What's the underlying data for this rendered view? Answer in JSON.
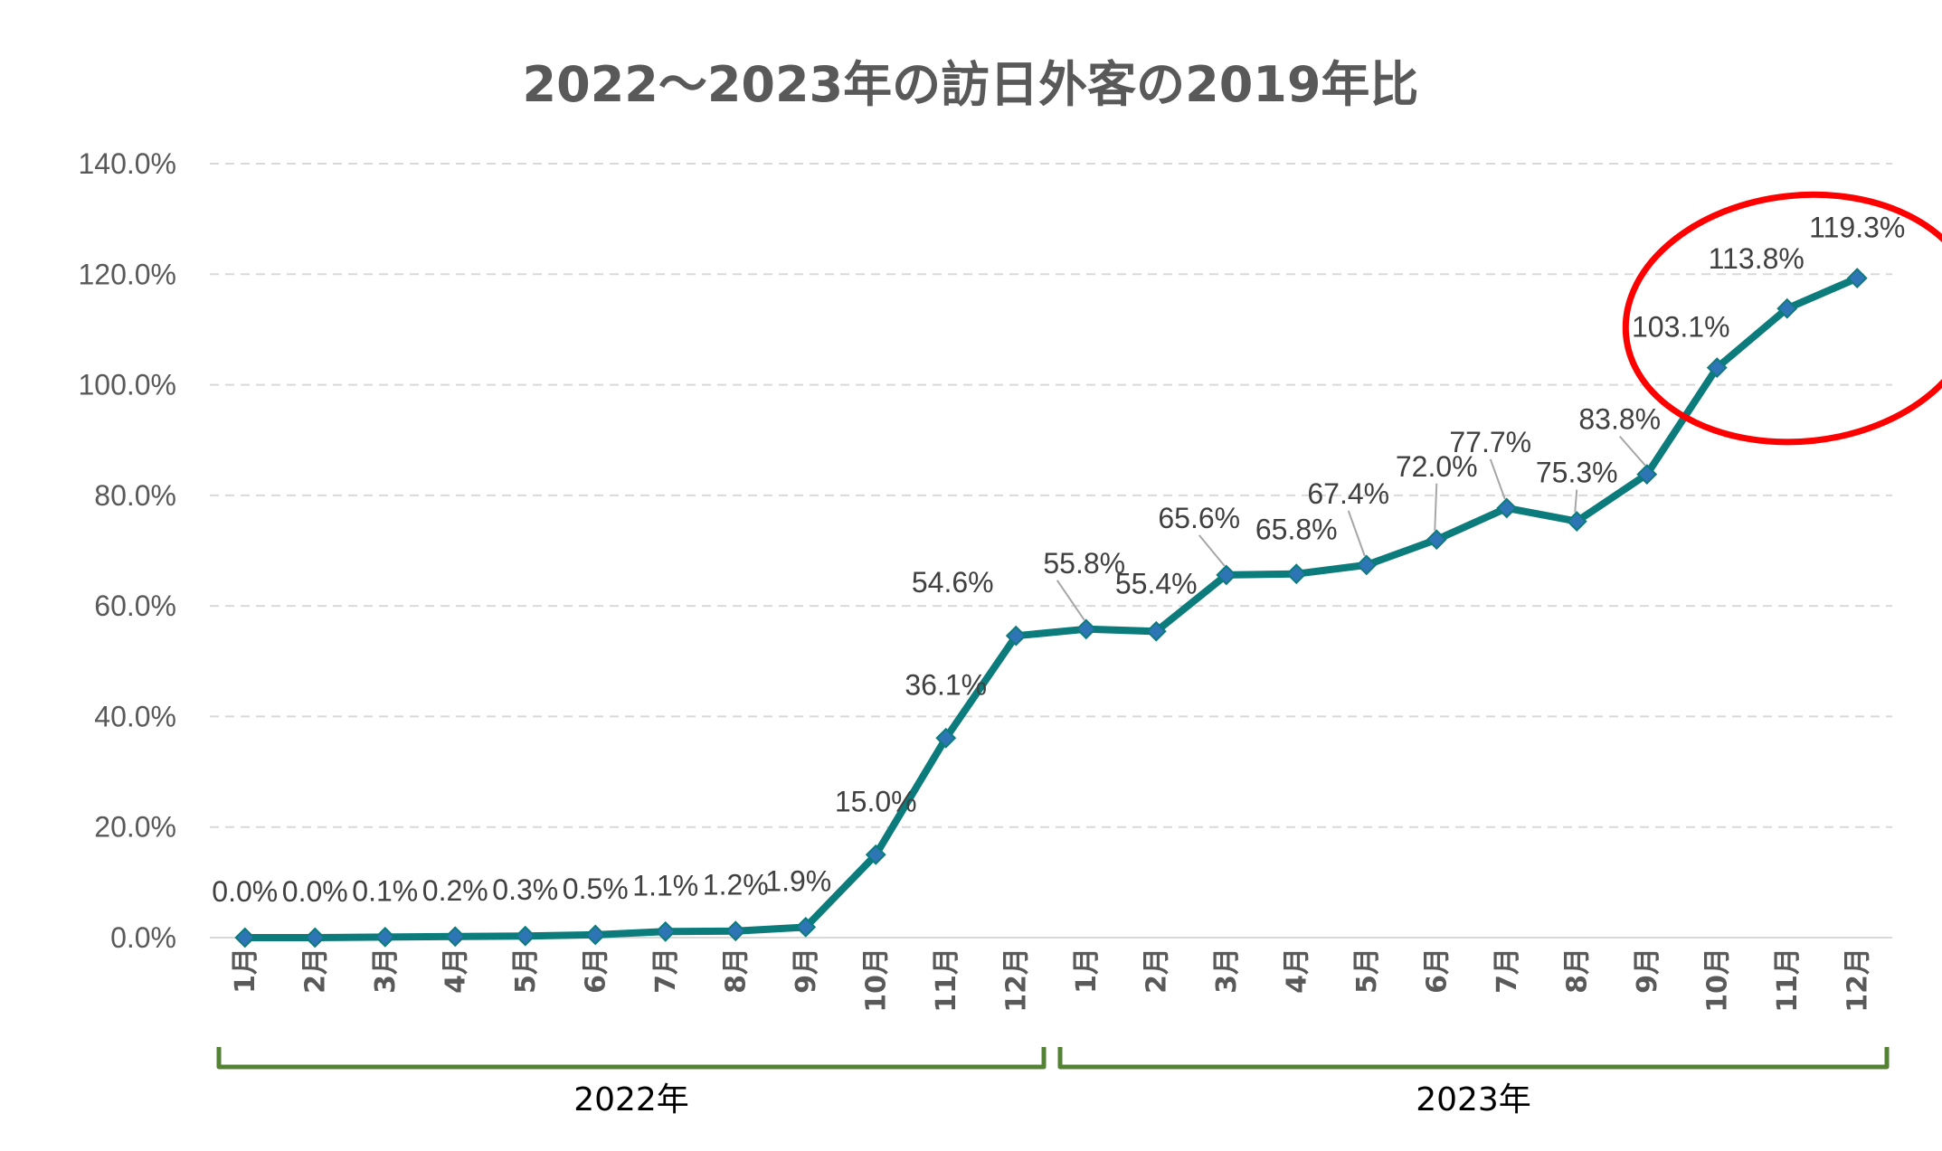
{
  "colors": {
    "line": "#0b7b7b",
    "marker": "#2e75b6",
    "grid": "#d9d9d9",
    "axis": "#d9d9d9",
    "bracket": "#548235",
    "highlight": "#ff0000",
    "leader": "#a6a6a6"
  },
  "chart_data": {
    "type": "line",
    "title": "2022〜2023年の訪日外客の2019年比",
    "xlabel": "",
    "ylabel": "",
    "ylim": [
      0,
      140
    ],
    "yticks": [
      0,
      20,
      40,
      60,
      80,
      100,
      120,
      140
    ],
    "ytick_labels": [
      "0.0%",
      "20.0%",
      "40.0%",
      "60.0%",
      "80.0%",
      "100.0%",
      "120.0%",
      "140.0%"
    ],
    "grid": true,
    "categories": [
      "1月",
      "2月",
      "3月",
      "4月",
      "5月",
      "6月",
      "7月",
      "8月",
      "9月",
      "10月",
      "11月",
      "12月",
      "1月",
      "2月",
      "3月",
      "4月",
      "5月",
      "6月",
      "7月",
      "8月",
      "9月",
      "10月",
      "11月",
      "12月"
    ],
    "series": [
      {
        "name": "2019年比",
        "values": [
          0.0,
          0.0,
          0.1,
          0.2,
          0.3,
          0.5,
          1.1,
          1.2,
          1.9,
          15.0,
          36.1,
          54.6,
          55.8,
          55.4,
          65.6,
          65.8,
          67.4,
          72.0,
          77.7,
          75.3,
          83.8,
          103.1,
          113.8,
          119.3
        ],
        "labels": [
          "0.0%",
          "0.0%",
          "0.1%",
          "0.2%",
          "0.3%",
          "0.5%",
          "1.1%",
          "1.2%",
          "1.9%",
          "15.0%",
          "36.1%",
          "54.6%",
          "55.8%",
          "55.4%",
          "65.6%",
          "65.8%",
          "67.4%",
          "72.0%",
          "77.7%",
          "75.3%",
          "83.8%",
          "103.1%",
          "113.8%",
          "119.3%"
        ]
      }
    ],
    "groups": [
      {
        "label": "2022年",
        "start_index": 0,
        "end_index": 11
      },
      {
        "label": "2023年",
        "start_index": 12,
        "end_index": 23
      }
    ],
    "annotations": [
      {
        "type": "ellipse",
        "description": "highlight",
        "start_index": 21,
        "end_index": 23
      }
    ]
  }
}
